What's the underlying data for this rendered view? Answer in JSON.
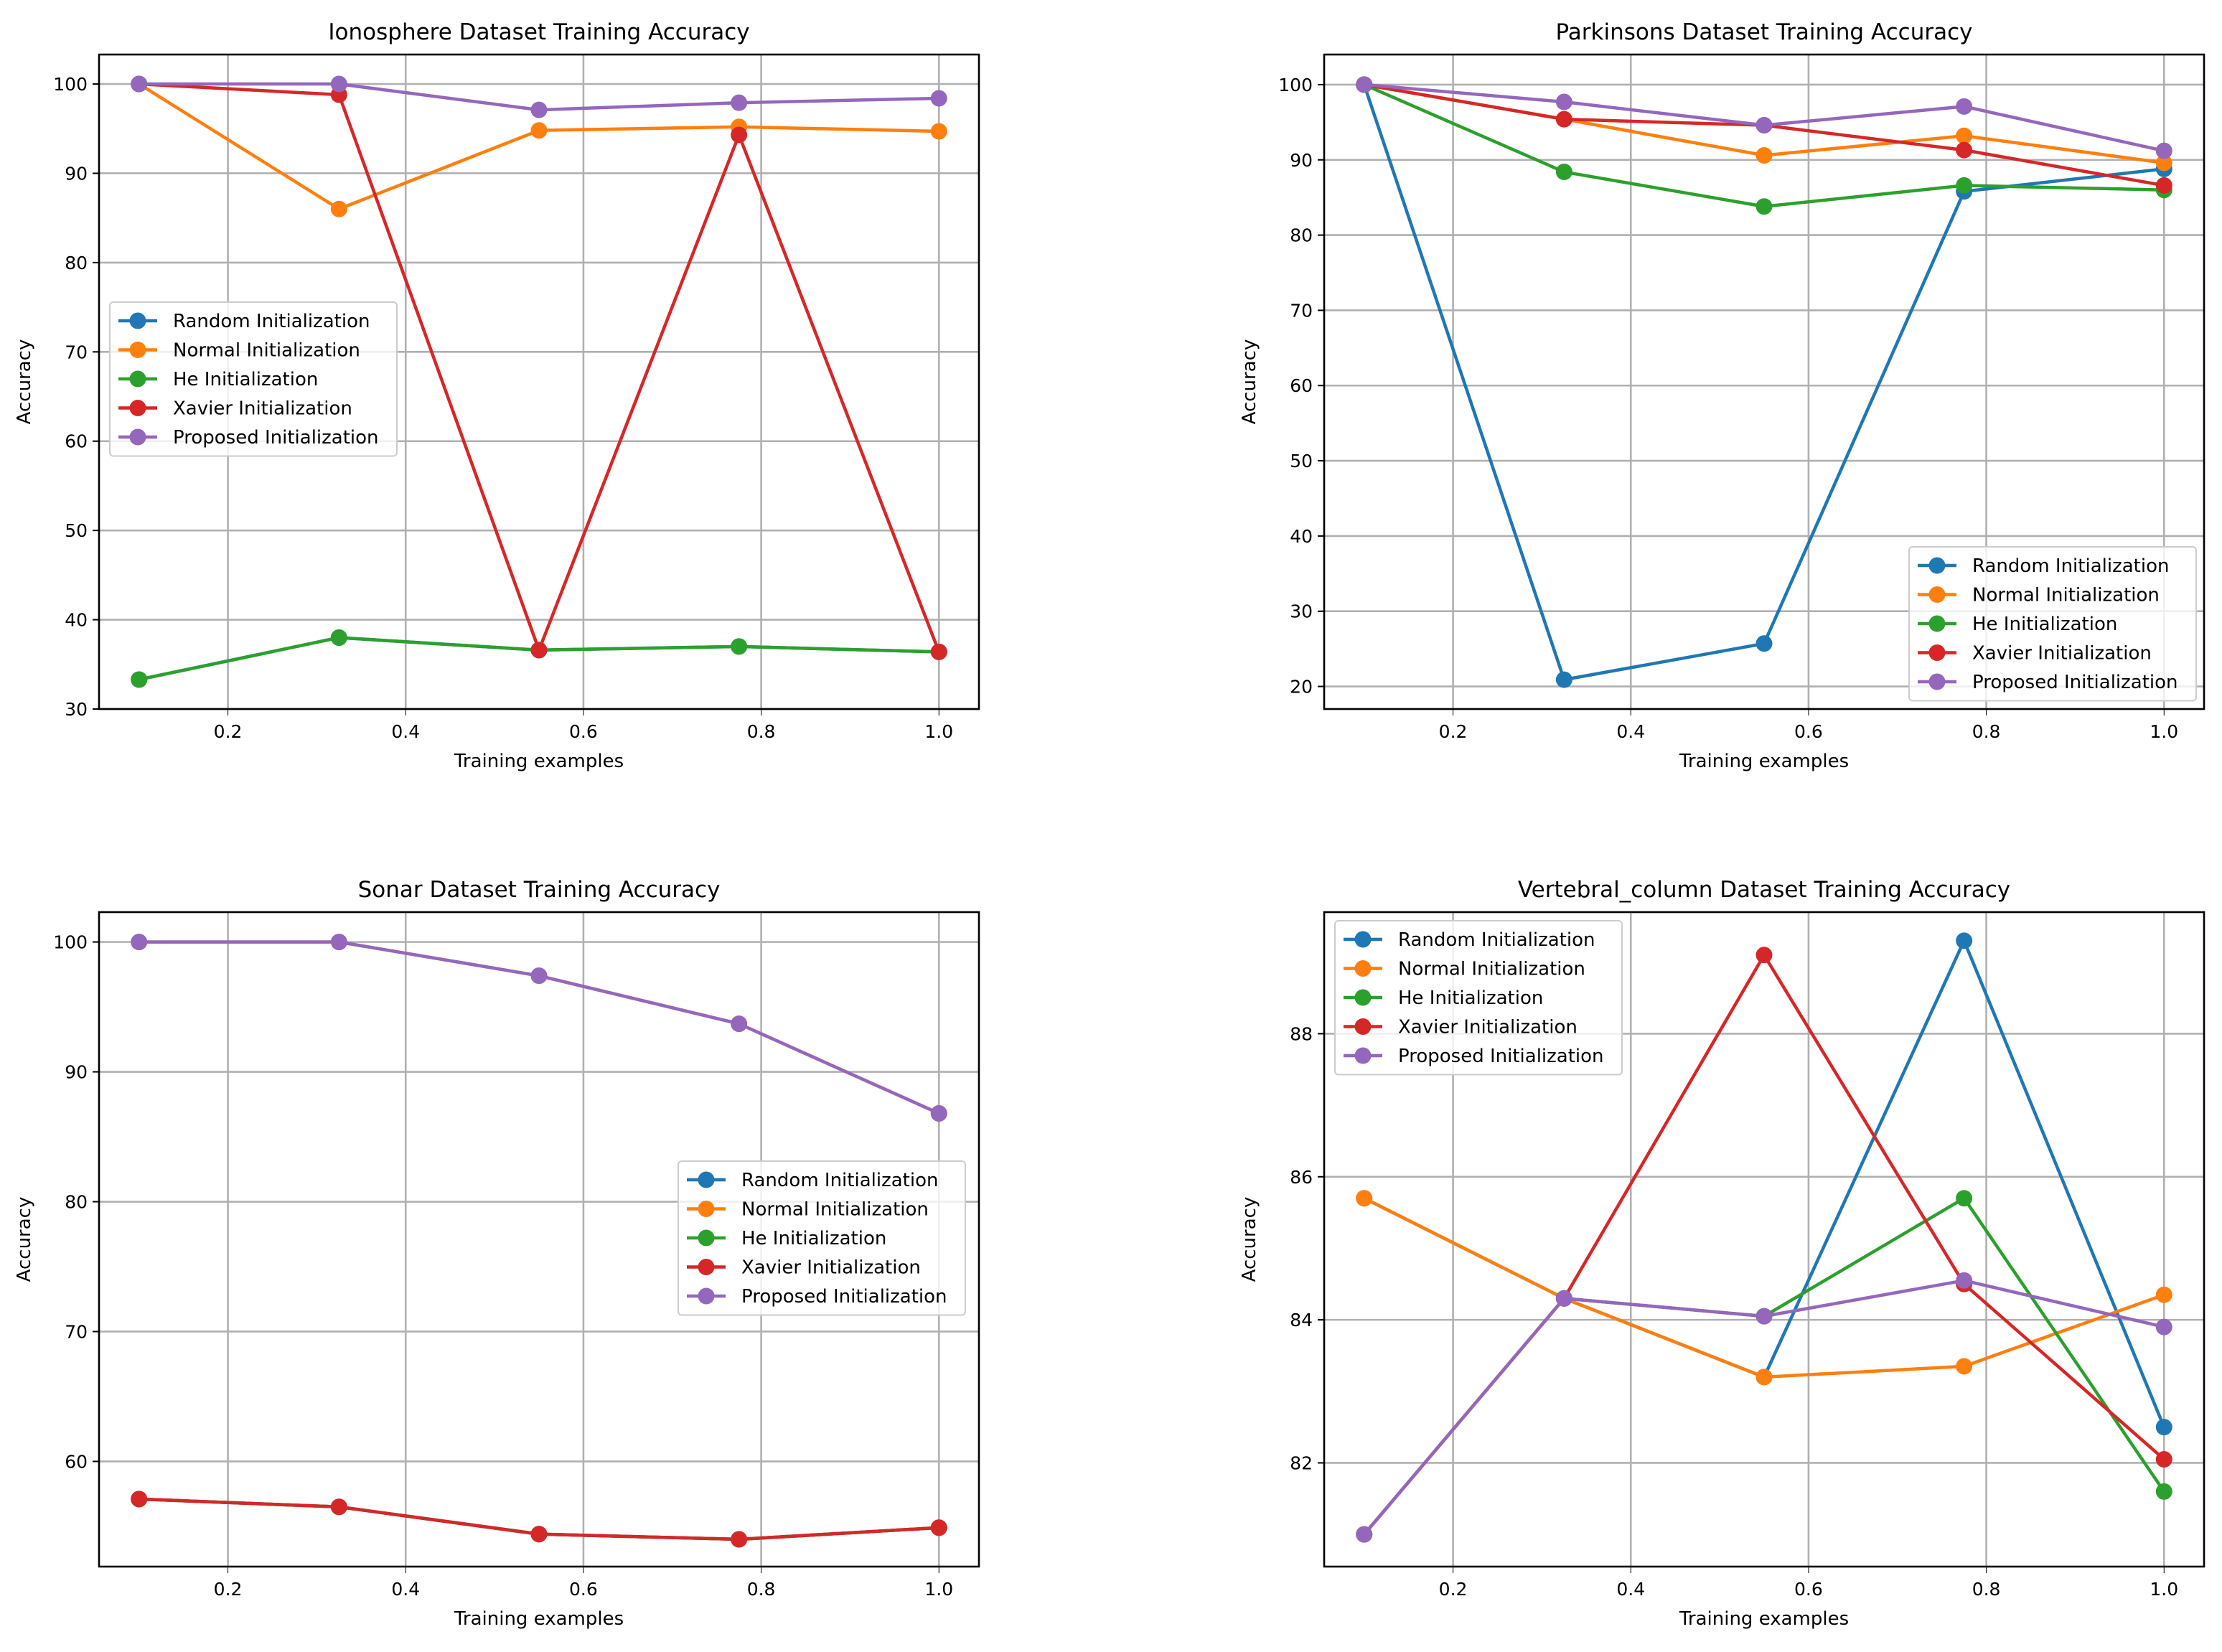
{
  "colors": {
    "Random Initialization": "#1f77b4",
    "Normal Initialization": "#ff7f0e",
    "He Initialization": "#2ca02c",
    "Xavier Initialization": "#d62728",
    "Proposed Initialization": "#9467bd"
  },
  "chart_data": [
    {
      "type": "line",
      "title": "Ionosphere Dataset Training Accuracy",
      "xlabel": "Training examples",
      "ylabel": "Accuracy",
      "x": [
        0.1,
        0.325,
        0.55,
        0.775,
        1.0
      ],
      "xlim": [
        0.055,
        1.045
      ],
      "ylim": [
        30,
        103.3
      ],
      "xticks": [
        0.2,
        0.4,
        0.6,
        0.8,
        1.0
      ],
      "xtick_labels": [
        "0.2",
        "0.4",
        "0.6",
        "0.8",
        "1.0"
      ],
      "yticks": [
        30,
        40,
        50,
        60,
        70,
        80,
        90,
        100
      ],
      "ytick_labels": [
        "30",
        "40",
        "50",
        "60",
        "70",
        "80",
        "90",
        "100"
      ],
      "grid": true,
      "legend": "center-left",
      "series": [
        {
          "name": "Random Initialization",
          "values": [
            33.3,
            38.0,
            36.6,
            37.0,
            36.4
          ]
        },
        {
          "name": "Normal Initialization",
          "values": [
            100,
            86.0,
            94.8,
            95.2,
            94.7
          ]
        },
        {
          "name": "He Initialization",
          "values": [
            33.3,
            38.0,
            36.6,
            37.0,
            36.4
          ]
        },
        {
          "name": "Xavier Initialization",
          "values": [
            100,
            98.8,
            36.6,
            94.3,
            36.4
          ]
        },
        {
          "name": "Proposed Initialization",
          "values": [
            100,
            100,
            97.1,
            97.9,
            98.4
          ]
        }
      ]
    },
    {
      "type": "line",
      "title": "Parkinsons Dataset Training Accuracy",
      "xlabel": "Training examples",
      "ylabel": "Accuracy",
      "x": [
        0.1,
        0.325,
        0.55,
        0.775,
        1.0
      ],
      "xlim": [
        0.055,
        1.045
      ],
      "ylim": [
        17,
        104
      ],
      "xticks": [
        0.2,
        0.4,
        0.6,
        0.8,
        1.0
      ],
      "xtick_labels": [
        "0.2",
        "0.4",
        "0.6",
        "0.8",
        "1.0"
      ],
      "yticks": [
        20,
        30,
        40,
        50,
        60,
        70,
        80,
        90,
        100
      ],
      "ytick_labels": [
        "20",
        "30",
        "40",
        "50",
        "60",
        "70",
        "80",
        "90",
        "100"
      ],
      "grid": true,
      "legend": "lower-right",
      "series": [
        {
          "name": "Random Initialization",
          "values": [
            100,
            20.9,
            25.7,
            85.8,
            88.8
          ]
        },
        {
          "name": "Normal Initialization",
          "values": [
            100,
            95.4,
            90.6,
            93.2,
            89.6
          ]
        },
        {
          "name": "He Initialization",
          "values": [
            100,
            88.4,
            83.8,
            86.6,
            86.0
          ]
        },
        {
          "name": "Xavier Initialization",
          "values": [
            100,
            95.4,
            94.6,
            91.3,
            86.6
          ]
        },
        {
          "name": "Proposed Initialization",
          "values": [
            100,
            97.7,
            94.6,
            97.1,
            91.2
          ]
        }
      ]
    },
    {
      "type": "line",
      "title": "Sonar Dataset Training Accuracy",
      "xlabel": "Training examples",
      "ylabel": "Accuracy",
      "x": [
        0.1,
        0.325,
        0.55,
        0.775,
        1.0
      ],
      "xlim": [
        0.055,
        1.045
      ],
      "ylim": [
        51.9,
        102.3
      ],
      "xticks": [
        0.2,
        0.4,
        0.6,
        0.8,
        1.0
      ],
      "xtick_labels": [
        "0.2",
        "0.4",
        "0.6",
        "0.8",
        "1.0"
      ],
      "yticks": [
        60,
        70,
        80,
        90,
        100
      ],
      "ytick_labels": [
        "60",
        "70",
        "80",
        "90",
        "100"
      ],
      "grid": true,
      "legend": "center-right",
      "series": [
        {
          "name": "Random Initialization",
          "values": [
            57.1,
            56.5,
            54.4,
            54.0,
            54.9
          ]
        },
        {
          "name": "Normal Initialization",
          "values": [
            100,
            100,
            97.4,
            93.7,
            86.8
          ]
        },
        {
          "name": "He Initialization",
          "values": [
            57.1,
            56.5,
            54.4,
            54.0,
            54.9
          ]
        },
        {
          "name": "Xavier Initialization",
          "values": [
            57.1,
            56.5,
            54.4,
            54.0,
            54.9
          ]
        },
        {
          "name": "Proposed Initialization",
          "values": [
            100,
            100,
            97.4,
            93.7,
            86.8
          ]
        }
      ]
    },
    {
      "type": "line",
      "title": "Vertebral_column Dataset Training Accuracy",
      "xlabel": "Training examples",
      "ylabel": "Accuracy",
      "x": [
        0.1,
        0.325,
        0.55,
        0.775,
        1.0
      ],
      "xlim": [
        0.055,
        1.045
      ],
      "ylim": [
        80.55,
        89.7
      ],
      "xticks": [
        0.2,
        0.4,
        0.6,
        0.8,
        1.0
      ],
      "xtick_labels": [
        "0.2",
        "0.4",
        "0.6",
        "0.8",
        "1.0"
      ],
      "yticks": [
        82,
        84,
        86,
        88
      ],
      "ytick_labels": [
        "82",
        "84",
        "86",
        "88"
      ],
      "grid": true,
      "legend": "top-left",
      "series": [
        {
          "name": "Random Initialization",
          "values": [
            85.7,
            84.3,
            83.2,
            89.3,
            82.5
          ]
        },
        {
          "name": "Normal Initialization",
          "values": [
            85.7,
            84.3,
            83.2,
            83.35,
            84.35
          ]
        },
        {
          "name": "He Initialization",
          "values": [
            81.0,
            84.3,
            84.05,
            85.7,
            81.6
          ]
        },
        {
          "name": "Xavier Initialization",
          "values": [
            81.0,
            84.3,
            89.1,
            84.5,
            82.05
          ]
        },
        {
          "name": "Proposed Initialization",
          "values": [
            81.0,
            84.3,
            84.05,
            84.55,
            83.9
          ]
        }
      ]
    }
  ]
}
